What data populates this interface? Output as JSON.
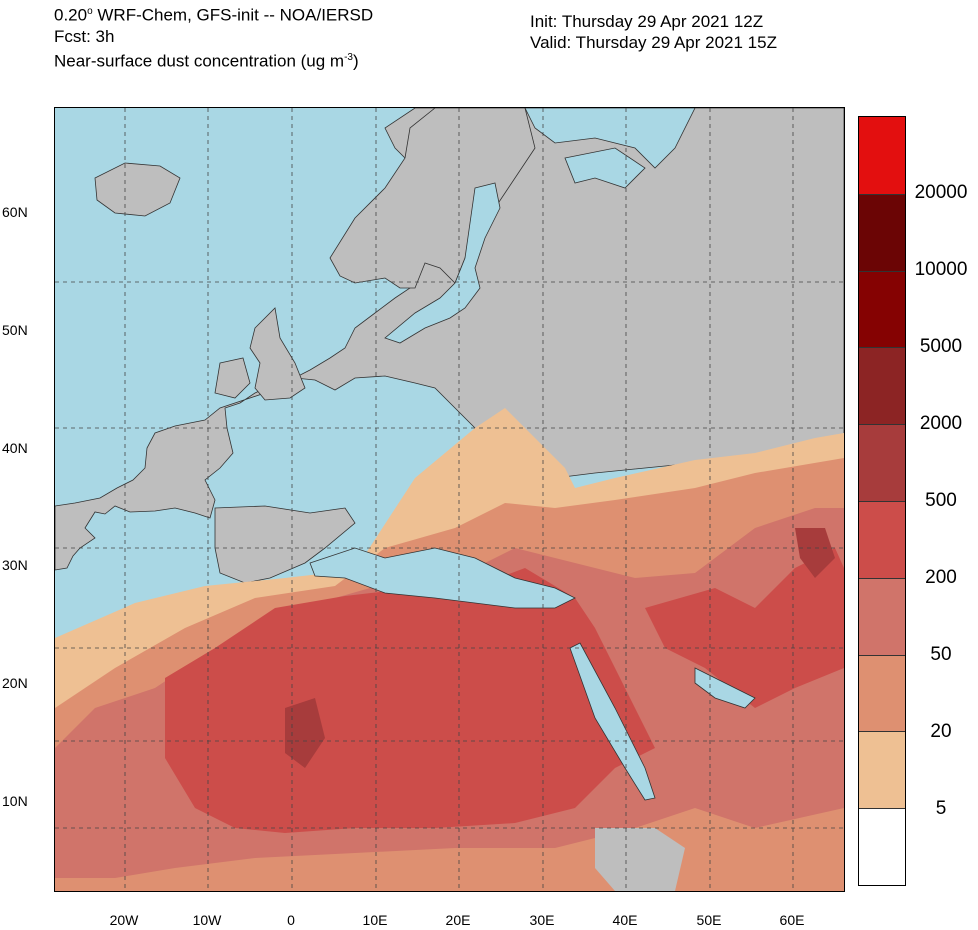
{
  "header": {
    "line1_main": "0.20",
    "line1_sup": "o",
    "line1_rest": " WRF-Chem, GFS-init -- NOA/IERSD",
    "line2": "Fcst: 3h",
    "line3_main": "Near-surface dust concentration (ug m",
    "line3_sup": "-3",
    "line3_end": ")",
    "init": "Init: Thursday 29 Apr 2021  12Z",
    "valid": "Valid: Thursday 29 Apr 2021  15Z"
  },
  "axes": {
    "lat_labels": [
      "60N",
      "50N",
      "40N",
      "30N",
      "20N",
      "10N"
    ],
    "lon_labels": [
      "20W",
      "10W",
      "0",
      "10E",
      "20E",
      "30E",
      "40E",
      "50E",
      "60E"
    ]
  },
  "colorbar": {
    "levels": [
      "20000",
      "10000",
      "5000",
      "2000",
      "500",
      "200",
      "50",
      "20",
      "5"
    ],
    "colors": [
      "#e30f0f",
      "#6b0505",
      "#850202",
      "#8c2424",
      "#a73c3c",
      "#cc4d4a",
      "#d0746a",
      "#de9071",
      "#eec093",
      "#ffffff"
    ]
  },
  "map_colors": {
    "sea": "#a9d7e4",
    "land_no_dust": "#bebebe",
    "borders": "#333333"
  }
}
